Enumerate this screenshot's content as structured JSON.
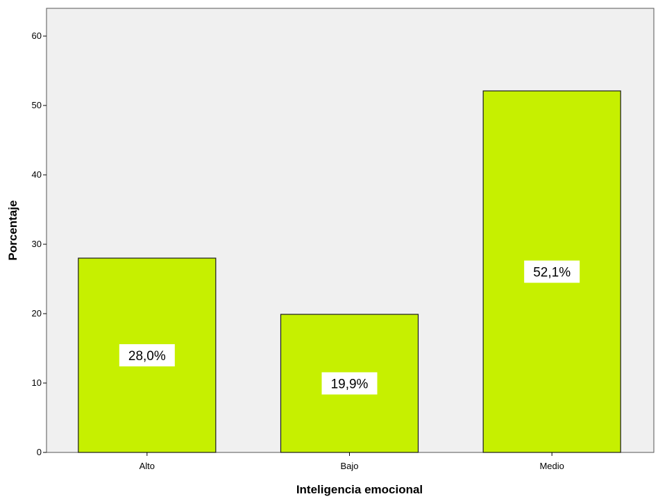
{
  "chart_data": {
    "type": "bar",
    "title": "",
    "xlabel": "Inteligencia emocional",
    "ylabel": "Porcentaje",
    "categories": [
      "Alto",
      "Bajo",
      "Medio"
    ],
    "values": [
      28.0,
      19.9,
      52.1
    ],
    "data_labels": [
      "28,0%",
      "19,9%",
      "52,1%"
    ],
    "ylim": [
      0,
      64
    ],
    "yticks": [
      0,
      10,
      20,
      30,
      40,
      50,
      60
    ],
    "grid": false,
    "legend": "none",
    "colors": {
      "bar_fill": "#c6f000",
      "bar_stroke": "#1a1a1a",
      "plot_background": "#f0f0f0",
      "frame": "#555555"
    }
  }
}
